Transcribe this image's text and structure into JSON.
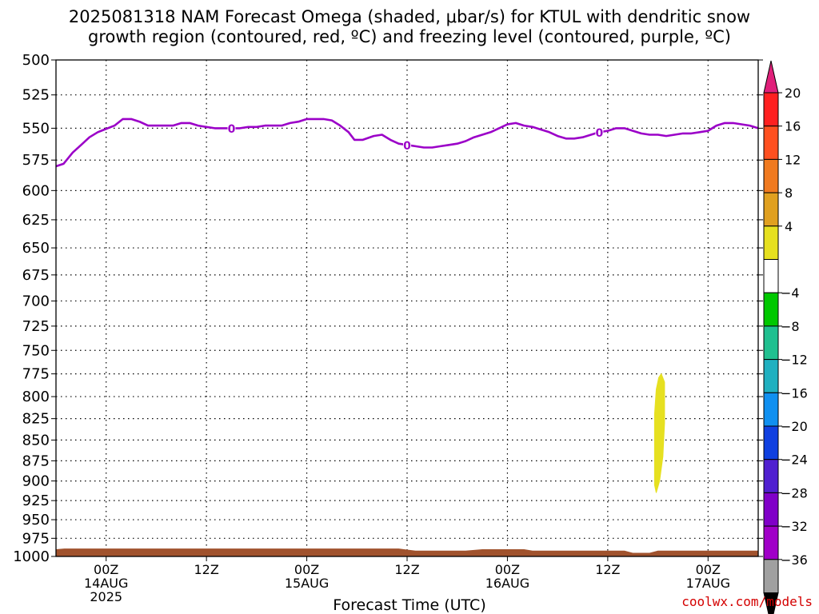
{
  "title_line1": "2025081318 NAM Forecast Omega (shaded, μbar/s) for KTUL with dendritic snow",
  "title_line2": "growth region (contoured, red, ºC) and freezing level (contoured, purple, ºC)",
  "watermark": "coolwx.com/models",
  "colors": {
    "freezing_level": "#9b00c8",
    "ground": "#a0522d",
    "omega_shade": "#e6e020"
  },
  "chart_data": {
    "type": "area",
    "title": "2025081318 NAM Forecast Omega (shaded, μbar/s) for KTUL with dendritic snow growth region (contoured, red, ºC) and freezing level (contoured, purple, ºC)",
    "xlabel": "Forecast Time (UTC)",
    "ylabel": "",
    "x_unit": "forecast hour (from 2025081318)",
    "xlim": [
      0,
      84
    ],
    "ylim": [
      1000,
      500
    ],
    "y_scale": "log-pressure (inverted)",
    "y_ticks": [
      500,
      525,
      550,
      575,
      600,
      625,
      650,
      675,
      700,
      725,
      750,
      775,
      800,
      825,
      850,
      875,
      900,
      925,
      950,
      975,
      1000
    ],
    "x_ticks": [
      {
        "x": 6,
        "label": "00Z",
        "sub1": "14AUG",
        "sub2": "2025"
      },
      {
        "x": 18,
        "label": "12Z",
        "sub1": "",
        "sub2": ""
      },
      {
        "x": 30,
        "label": "00Z",
        "sub1": "15AUG",
        "sub2": ""
      },
      {
        "x": 42,
        "label": "12Z",
        "sub1": "",
        "sub2": ""
      },
      {
        "x": 54,
        "label": "00Z",
        "sub1": "16AUG",
        "sub2": ""
      },
      {
        "x": 66,
        "label": "12Z",
        "sub1": "",
        "sub2": ""
      },
      {
        "x": 78,
        "label": "00Z",
        "sub1": "17AUG",
        "sub2": ""
      }
    ],
    "grid": true,
    "series": [
      {
        "name": "freezing level 0 ºC",
        "contour_label": "0",
        "label_at_x": [
          21,
          42,
          65
        ],
        "points": [
          [
            0,
            580
          ],
          [
            0.9,
            578
          ],
          [
            2,
            569
          ],
          [
            3,
            563
          ],
          [
            4,
            557
          ],
          [
            5,
            553
          ],
          [
            7,
            548
          ],
          [
            8,
            543
          ],
          [
            9,
            543
          ],
          [
            10,
            545
          ],
          [
            11,
            548
          ],
          [
            12,
            548
          ],
          [
            13,
            548
          ],
          [
            14,
            548
          ],
          [
            15,
            546
          ],
          [
            16,
            546
          ],
          [
            17,
            548
          ],
          [
            18,
            549
          ],
          [
            19,
            550
          ],
          [
            20,
            550
          ],
          [
            21,
            550
          ],
          [
            22,
            550
          ],
          [
            23,
            549
          ],
          [
            24,
            549
          ],
          [
            25,
            548
          ],
          [
            26,
            548
          ],
          [
            27,
            548
          ],
          [
            28,
            546
          ],
          [
            29,
            545
          ],
          [
            30,
            543
          ],
          [
            31,
            543
          ],
          [
            32,
            543
          ],
          [
            33,
            544
          ],
          [
            34,
            548
          ],
          [
            35,
            553
          ],
          [
            35.7,
            559
          ],
          [
            36.7,
            559
          ],
          [
            38,
            556
          ],
          [
            39,
            555
          ],
          [
            40,
            559
          ],
          [
            41,
            562
          ],
          [
            42,
            563
          ],
          [
            43,
            564
          ],
          [
            44,
            565
          ],
          [
            45,
            565
          ],
          [
            46,
            564
          ],
          [
            47,
            563
          ],
          [
            48,
            562
          ],
          [
            49,
            560
          ],
          [
            50,
            557
          ],
          [
            51,
            555
          ],
          [
            52,
            553
          ],
          [
            53,
            550
          ],
          [
            54,
            547
          ],
          [
            55,
            546
          ],
          [
            56,
            548
          ],
          [
            57,
            549
          ],
          [
            58,
            551
          ],
          [
            59,
            553
          ],
          [
            60,
            556
          ],
          [
            61,
            558
          ],
          [
            62,
            558
          ],
          [
            63,
            557
          ],
          [
            64,
            555
          ],
          [
            65,
            553
          ],
          [
            66,
            552
          ],
          [
            67,
            550
          ],
          [
            68,
            550
          ],
          [
            69,
            552
          ],
          [
            70,
            554
          ],
          [
            71,
            555
          ],
          [
            72,
            555
          ],
          [
            73,
            556
          ],
          [
            74,
            555
          ],
          [
            75,
            554
          ],
          [
            76,
            554
          ],
          [
            77,
            553
          ],
          [
            78,
            552
          ],
          [
            79,
            548
          ],
          [
            80,
            546
          ],
          [
            81,
            546
          ],
          [
            82,
            547
          ],
          [
            83,
            548
          ],
          [
            84,
            550
          ]
        ]
      }
    ],
    "shaded_regions": [
      {
        "name": "omega 4 to 8 μbar/s",
        "color": "#e6e020",
        "polygon": [
          [
            72.4,
            775
          ],
          [
            72.8,
            784
          ],
          [
            72.8,
            830
          ],
          [
            72.6,
            870
          ],
          [
            72.2,
            900
          ],
          [
            71.8,
            915
          ],
          [
            71.6,
            905
          ],
          [
            71.6,
            860
          ],
          [
            71.6,
            820
          ],
          [
            71.8,
            792
          ],
          [
            72.1,
            779
          ]
        ]
      }
    ],
    "ground": {
      "name": "terrain",
      "color": "#a0522d",
      "top_pressure": [
        [
          0,
          990
        ],
        [
          1,
          989
        ],
        [
          41,
          989
        ],
        [
          43,
          992
        ],
        [
          49,
          992
        ],
        [
          51,
          990
        ],
        [
          56,
          990
        ],
        [
          57,
          992
        ],
        [
          68,
          992
        ],
        [
          69,
          995
        ],
        [
          71,
          995
        ],
        [
          72,
          992
        ],
        [
          84,
          992
        ]
      ]
    },
    "colorbar": {
      "unit": "μbar/s",
      "labels": [
        20,
        16,
        12,
        8,
        4,
        -4,
        -8,
        -12,
        -16,
        -20,
        -24,
        -28,
        -32,
        -36
      ],
      "colors": [
        "#ff2020",
        "#ff5020",
        "#f07a20",
        "#e0a020",
        "#e6e020",
        "#ffffff",
        "#00c800",
        "#20c090",
        "#20b0c0",
        "#1090f0",
        "#1040e0",
        "#5020d0",
        "#8000c8",
        "#a000c8",
        "#a0a0a0"
      ],
      "top_triangle_color": "#e0207a",
      "bottom_triangle_color": "#000000"
    }
  }
}
